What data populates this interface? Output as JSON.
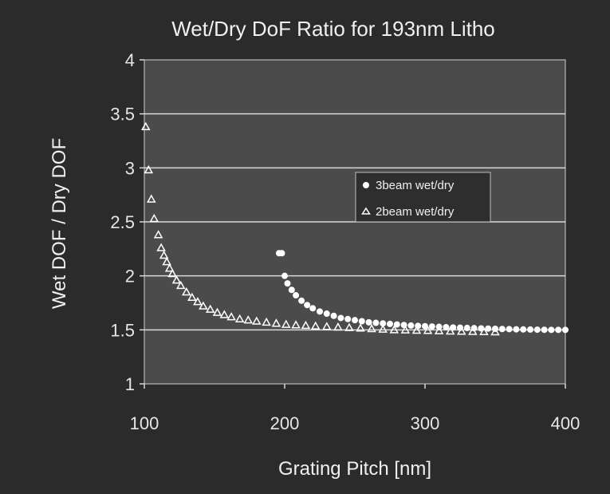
{
  "chart_data": {
    "type": "scatter",
    "title": "Wet/Dry DoF Ratio for 193nm Litho",
    "xlabel": "Grating Pitch [nm]",
    "ylabel": "Wet DOF / Dry DOF",
    "xlim": [
      100,
      400
    ],
    "ylim": [
      1,
      4
    ],
    "x_ticks": [
      100,
      200,
      300,
      400
    ],
    "x_tick_labels": [
      "100",
      "200",
      "300",
      "400"
    ],
    "y_ticks": [
      1,
      1.5,
      2,
      2.5,
      3,
      3.5,
      4
    ],
    "y_tick_labels": [
      "1",
      "1.5",
      "2",
      "2.5",
      "3",
      "3.5",
      "4"
    ],
    "grid": "horizontal",
    "legend_position": "center-right",
    "series": [
      {
        "name": "3beam wet/dry",
        "marker": "circle",
        "color": "#ffffff",
        "points": [
          [
            196,
            2.21
          ],
          [
            198,
            2.21
          ],
          [
            200,
            2.0
          ],
          [
            202,
            1.93
          ],
          [
            205,
            1.87
          ],
          [
            208,
            1.82
          ],
          [
            212,
            1.77
          ],
          [
            216,
            1.73
          ],
          [
            220,
            1.7
          ],
          [
            225,
            1.67
          ],
          [
            230,
            1.65
          ],
          [
            235,
            1.63
          ],
          [
            240,
            1.61
          ],
          [
            245,
            1.6
          ],
          [
            250,
            1.59
          ],
          [
            255,
            1.58
          ],
          [
            260,
            1.57
          ],
          [
            265,
            1.565
          ],
          [
            270,
            1.56
          ],
          [
            275,
            1.555
          ],
          [
            280,
            1.55
          ],
          [
            285,
            1.545
          ],
          [
            290,
            1.54
          ],
          [
            295,
            1.537
          ],
          [
            300,
            1.534
          ],
          [
            305,
            1.531
          ],
          [
            310,
            1.528
          ],
          [
            315,
            1.525
          ],
          [
            320,
            1.522
          ],
          [
            325,
            1.52
          ],
          [
            330,
            1.518
          ],
          [
            335,
            1.516
          ],
          [
            340,
            1.514
          ],
          [
            345,
            1.512
          ],
          [
            350,
            1.51
          ],
          [
            355,
            1.508
          ],
          [
            360,
            1.507
          ],
          [
            365,
            1.505
          ],
          [
            370,
            1.504
          ],
          [
            375,
            1.503
          ],
          [
            380,
            1.502
          ],
          [
            385,
            1.501
          ],
          [
            390,
            1.5
          ],
          [
            395,
            1.5
          ],
          [
            400,
            1.5
          ]
        ]
      },
      {
        "name": "2beam wet/dry",
        "marker": "triangle",
        "color": "#ffffff",
        "points": [
          [
            101,
            3.38
          ],
          [
            103,
            2.98
          ],
          [
            105,
            2.71
          ],
          [
            107,
            2.53
          ],
          [
            110,
            2.38
          ],
          [
            112,
            2.26
          ],
          [
            114,
            2.19
          ],
          [
            116,
            2.13
          ],
          [
            118,
            2.07
          ],
          [
            120,
            2.02
          ],
          [
            123,
            1.96
          ],
          [
            126,
            1.91
          ],
          [
            130,
            1.85
          ],
          [
            134,
            1.8
          ],
          [
            138,
            1.76
          ],
          [
            142,
            1.72
          ],
          [
            147,
            1.69
          ],
          [
            152,
            1.66
          ],
          [
            157,
            1.64
          ],
          [
            162,
            1.62
          ],
          [
            168,
            1.6
          ],
          [
            174,
            1.59
          ],
          [
            180,
            1.58
          ],
          [
            187,
            1.57
          ],
          [
            194,
            1.56
          ],
          [
            201,
            1.55
          ],
          [
            208,
            1.545
          ],
          [
            215,
            1.54
          ],
          [
            222,
            1.535
          ],
          [
            230,
            1.53
          ],
          [
            238,
            1.525
          ],
          [
            246,
            1.52
          ],
          [
            254,
            1.515
          ],
          [
            262,
            1.51
          ],
          [
            270,
            1.505
          ],
          [
            278,
            1.5
          ],
          [
            286,
            1.498
          ],
          [
            294,
            1.495
          ],
          [
            302,
            1.493
          ],
          [
            310,
            1.49
          ],
          [
            318,
            1.488
          ],
          [
            326,
            1.486
          ],
          [
            334,
            1.484
          ],
          [
            342,
            1.482
          ],
          [
            350,
            1.48
          ]
        ]
      }
    ]
  }
}
